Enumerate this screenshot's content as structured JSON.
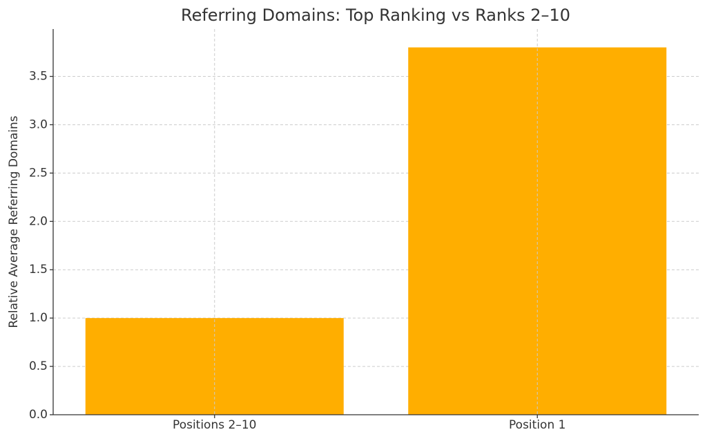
{
  "chart_data": {
    "type": "bar",
    "title": "Referring Domains: Top Ranking vs Ranks 2–10",
    "y_label": "Relative Average Referring Domains",
    "categories": [
      "Positions 2–10",
      "Position 1"
    ],
    "values": [
      1.0,
      3.8
    ],
    "color": "#ffae00",
    "ylim": [
      0,
      3.99
    ],
    "yticks": [
      {
        "value": 0,
        "label": "0.0"
      },
      0.5,
      {
        "value": 1,
        "label": "1.0"
      },
      1.5,
      {
        "value": 2,
        "label": "2.0"
      },
      2.5,
      {
        "value": 3,
        "label": "3.0"
      },
      3.5
    ],
    "grid": true
  }
}
